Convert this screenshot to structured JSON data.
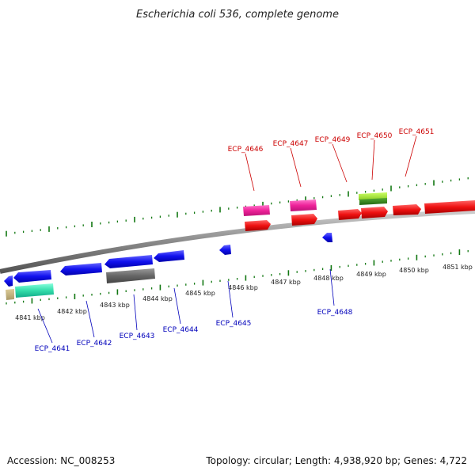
{
  "title": "Escherichia coli 536, complete genome",
  "footer": {
    "accession": "Accession: NC_008253",
    "summary": "Topology: circular; Length: 4,938,920 bp; Genes: 4,722"
  },
  "colors": {
    "forward_label": "#cc0000",
    "reverse_label": "#0000bb",
    "backbone": "#8a8a8a",
    "tick": "#117711"
  },
  "tick_labels": [
    "4841 kbp",
    "4842 kbp",
    "4843 kbp",
    "4844 kbp",
    "4845 kbp",
    "4846 kbp",
    "4847 kbp",
    "4848 kbp",
    "4849 kbp",
    "4850 kbp",
    "4851 kbp"
  ],
  "gene_labels": {
    "forward": [
      "ECP_4646",
      "ECP_4647",
      "ECP_4649",
      "ECP_4650",
      "ECP_4651"
    ],
    "reverse": [
      "ECP_4641",
      "ECP_4642",
      "ECP_4643",
      "ECP_4644",
      "ECP_4645",
      "ECP_4648"
    ]
  }
}
